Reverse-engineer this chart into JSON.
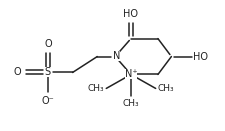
{
  "bg_color": "#ffffff",
  "line_color": "#222222",
  "line_width": 1.1,
  "font_size": 7.0,
  "figsize": [
    2.26,
    1.31
  ],
  "dpi": 100,
  "xlim": [
    0.0,
    10.0
  ],
  "ylim": [
    0.0,
    6.5
  ]
}
